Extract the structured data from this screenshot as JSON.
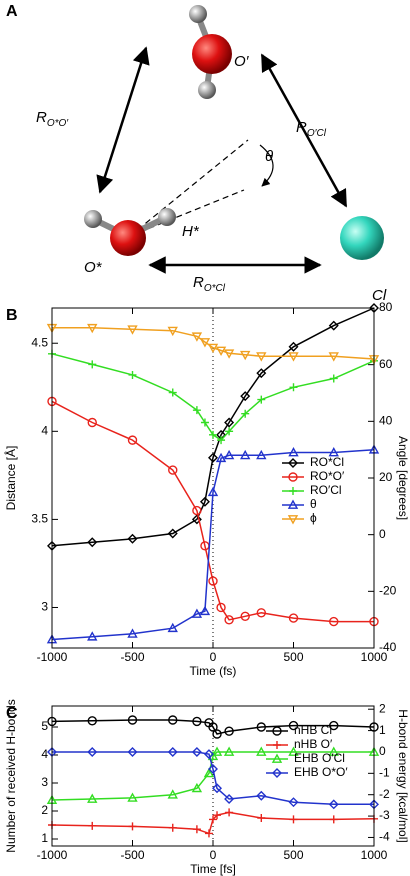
{
  "panel_a": {
    "label": "A",
    "o_prime": "O′",
    "h_star": "H*",
    "o_star": "O*",
    "cl": "Cl",
    "theta": "θ",
    "r_oo": {
      "main": "R",
      "sub": "O*O′"
    },
    "r_ocl_prime": {
      "main": "R",
      "sub": "O′Cl"
    },
    "r_ocl_star": {
      "main": "R",
      "sub": "O*Cl"
    }
  },
  "chart_data": [
    {
      "type": "line",
      "panel_label": "B",
      "x_label": "Time (fs)",
      "y_label": "Distance [Å]",
      "y2_label": "Angle [degrees]",
      "x": [
        -1000,
        -750,
        -500,
        -250,
        -100,
        -50,
        0,
        50,
        100,
        200,
        300,
        500,
        750,
        1000
      ],
      "xlim": [
        -1000,
        1000
      ],
      "xticks": [
        -1000,
        -500,
        0,
        500,
        1000
      ],
      "ylim": [
        2.77,
        4.7
      ],
      "yticks": [
        3,
        3.5,
        4,
        4.5
      ],
      "y2lim": [
        -40,
        80
      ],
      "y2ticks": [
        -40,
        -20,
        0,
        20,
        40,
        60,
        80
      ],
      "vline": 0,
      "legend": "center right",
      "series": [
        {
          "name": "RO*Cl",
          "color": "#000000",
          "marker": "diamond",
          "values": [
            3.35,
            3.37,
            3.39,
            3.42,
            3.5,
            3.6,
            3.85,
            3.98,
            4.05,
            4.2,
            4.33,
            4.48,
            4.6,
            4.7
          ]
        },
        {
          "name": "RO*O′",
          "color": "#e8231c",
          "marker": "circle",
          "values": [
            4.17,
            4.05,
            3.95,
            3.78,
            3.55,
            3.35,
            3.15,
            3.0,
            2.93,
            2.95,
            2.97,
            2.94,
            2.92,
            2.92
          ]
        },
        {
          "name": "RO′Cl",
          "color": "#33dd22",
          "marker": "plus",
          "values": [
            4.44,
            4.38,
            4.32,
            4.22,
            4.12,
            4.05,
            3.98,
            3.95,
            4.0,
            4.1,
            4.18,
            4.25,
            4.3,
            4.4
          ]
        },
        {
          "name": "θ",
          "color": "#2233cc",
          "marker": "triangle-up",
          "axis": "y2",
          "values": [
            -37,
            -36,
            -35,
            -33,
            -28,
            -27,
            15,
            27,
            28,
            28,
            28,
            29,
            29,
            30
          ]
        },
        {
          "name": "ϕ",
          "color": "#f0a020",
          "marker": "triangle-down",
          "axis": "y2",
          "values": [
            73,
            73,
            72.5,
            72,
            70,
            68,
            66,
            65,
            64,
            63.5,
            63,
            63,
            63,
            62
          ]
        }
      ]
    },
    {
      "type": "line",
      "panel_label": "C",
      "x_label": "Time [fs]",
      "y_label": "Number of received H-bonds",
      "y2_label": "H-bond energy [kcal/mol]",
      "x": [
        -1000,
        -750,
        -500,
        -250,
        -100,
        -25,
        0,
        25,
        100,
        300,
        500,
        750,
        1000
      ],
      "xlim": [
        -1000,
        1000
      ],
      "xticks": [
        -1000,
        -500,
        0,
        500,
        1000
      ],
      "ylim": [
        0.75,
        5.75
      ],
      "yticks": [
        1,
        2,
        3,
        4,
        5
      ],
      "y2lim": [
        -4.4,
        2.15
      ],
      "y2ticks": [
        -4,
        -3,
        -2,
        -1,
        0,
        1,
        2
      ],
      "vline": 0,
      "legend": "upper right",
      "series": [
        {
          "name": "nHB Cl",
          "color": "#000000",
          "marker": "circle",
          "values": [
            5.2,
            5.22,
            5.25,
            5.25,
            5.2,
            5.15,
            5.0,
            4.75,
            4.85,
            5.0,
            5.05,
            5.05,
            5.0
          ]
        },
        {
          "name": "nHB O′",
          "color": "#e8231c",
          "marker": "plus",
          "values": [
            1.5,
            1.47,
            1.45,
            1.4,
            1.35,
            1.2,
            1.7,
            1.85,
            1.95,
            1.75,
            1.7,
            1.7,
            1.72
          ]
        },
        {
          "name": "EHB O′Cl",
          "color": "#33dd22",
          "marker": "triangle-up",
          "axis": "y2",
          "values": [
            -2.25,
            -2.2,
            -2.15,
            -2.0,
            -1.7,
            -1.0,
            -0.2,
            0,
            0,
            0,
            0,
            0,
            0
          ]
        },
        {
          "name": "EHB O*O′",
          "color": "#2233cc",
          "marker": "diamond",
          "axis": "y2",
          "values": [
            0,
            0,
            0,
            0,
            0,
            -0.1,
            -0.8,
            -1.7,
            -2.2,
            -2.05,
            -2.35,
            -2.45,
            -2.45
          ]
        }
      ]
    }
  ]
}
